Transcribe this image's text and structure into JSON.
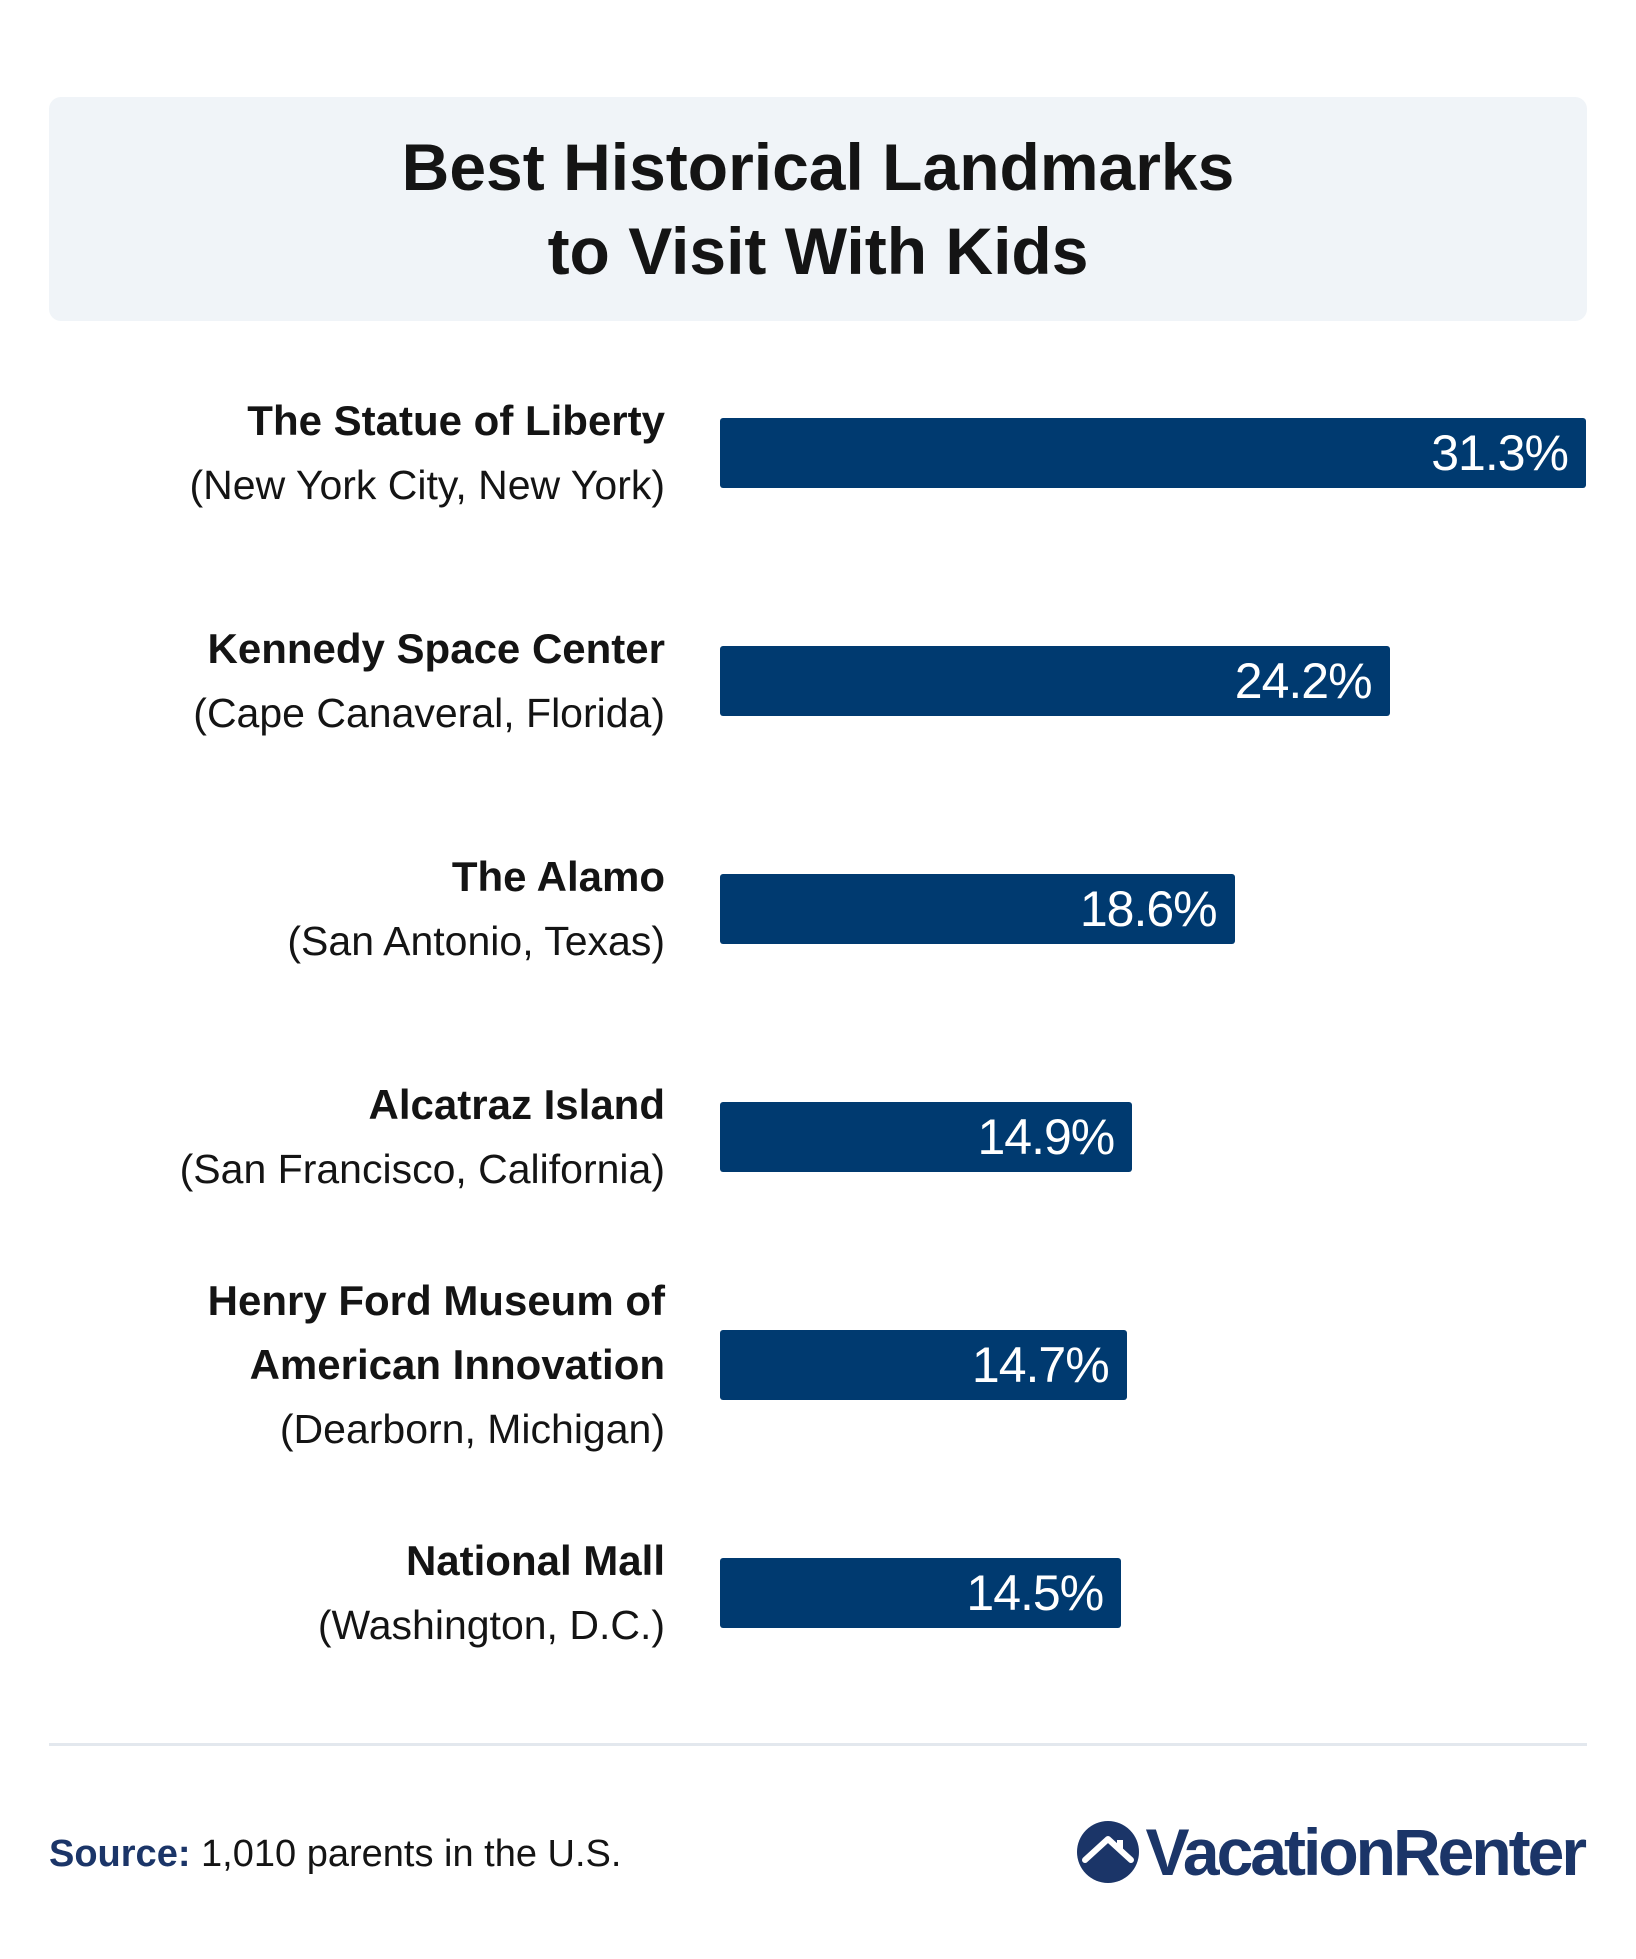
{
  "title_lines": [
    "Best Historical Landmarks",
    "to Visit With Kids"
  ],
  "colors": {
    "bar": "#003a70",
    "title_bg": "#f0f4f8",
    "brand": "#1b3568"
  },
  "chart_data": {
    "type": "bar",
    "orientation": "horizontal",
    "title": "Best Historical Landmarks to Visit With Kids",
    "categories": [
      {
        "name_lines": [
          "The Statue of Liberty"
        ],
        "location": "(New York City, New York)"
      },
      {
        "name_lines": [
          "Kennedy Space Center"
        ],
        "location": "(Cape Canaveral, Florida)"
      },
      {
        "name_lines": [
          "The Alamo"
        ],
        "location": "(San Antonio, Texas)"
      },
      {
        "name_lines": [
          "Alcatraz Island"
        ],
        "location": "(San Francisco, California)"
      },
      {
        "name_lines": [
          "Henry Ford Museum of",
          "American Innovation"
        ],
        "location": "(Dearborn, Michigan)"
      },
      {
        "name_lines": [
          "National Mall"
        ],
        "location": "(Washington, D.C.)"
      }
    ],
    "values": [
      31.3,
      24.2,
      18.6,
      14.9,
      14.7,
      14.5
    ],
    "value_labels": [
      "31.3%",
      "24.2%",
      "18.6%",
      "14.9%",
      "14.7%",
      "14.5%"
    ],
    "xlim": [
      0,
      31.3
    ],
    "grid": false,
    "legend": "none"
  },
  "footer": {
    "source_label": "Source:",
    "source_text": "1,010 parents in the U.S.",
    "logo_text": "VacationRenter",
    "logo_icon": "house-roof-icon"
  }
}
